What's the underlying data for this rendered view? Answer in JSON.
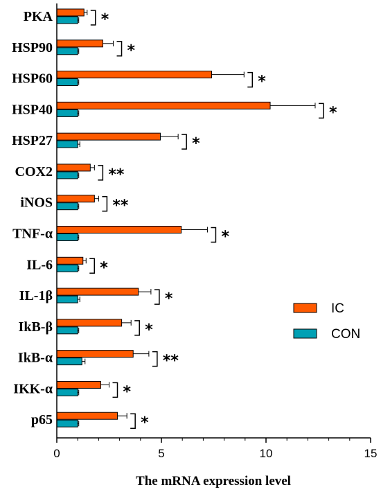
{
  "chart_data": {
    "type": "bar",
    "orientation": "horizontal",
    "title": "",
    "xlabel": "The mRNA expression level",
    "ylabel": "",
    "xlim": [
      0,
      15
    ],
    "xticks": [
      "0",
      "5",
      "10",
      "15"
    ],
    "grid": false,
    "legend_position": "right",
    "categories": [
      "PKA",
      "HSP90",
      "HSP60",
      "HSP40",
      "HSP27",
      "COX2",
      "iNOS",
      "TNF-α",
      "IL-6",
      "IL-1β",
      "IkB-β",
      "IkB-α",
      "IKK-α",
      "p65"
    ],
    "series": [
      {
        "name": "IC",
        "color": "#FF5A00",
        "values": [
          1.3,
          2.2,
          7.4,
          10.2,
          4.95,
          1.6,
          1.8,
          5.95,
          1.25,
          3.9,
          3.1,
          3.65,
          2.1,
          2.9
        ],
        "errors": [
          0.15,
          0.5,
          1.55,
          2.15,
          0.85,
          0.2,
          0.2,
          1.25,
          0.15,
          0.6,
          0.45,
          0.75,
          0.4,
          0.45
        ]
      },
      {
        "name": "CON",
        "color": "#00A0B4",
        "values": [
          1.0,
          1.0,
          1.0,
          1.0,
          1.0,
          1.0,
          1.0,
          1.0,
          1.0,
          1.0,
          1.0,
          1.2,
          1.0,
          1.0
        ],
        "errors": [
          0.05,
          0.05,
          0.05,
          0.05,
          0.1,
          0.05,
          0.05,
          0.05,
          0.05,
          0.1,
          0.05,
          0.15,
          0.05,
          0.05
        ]
      }
    ],
    "significance": [
      "*",
      "*",
      "*",
      "*",
      "*",
      "**",
      "**",
      "*",
      "*",
      "*",
      "*",
      "**",
      "*",
      "*"
    ]
  }
}
